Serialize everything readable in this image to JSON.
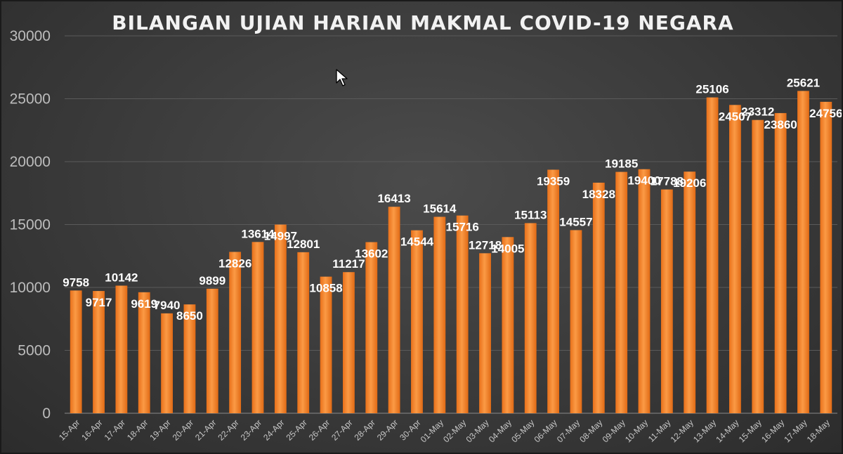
{
  "chart_data": {
    "type": "bar",
    "title": "BILANGAN UJIAN HARIAN MAKMAL COVID-19 NEGARA",
    "xlabel": "",
    "ylabel": "",
    "ylim": [
      0,
      30000
    ],
    "yticks": [
      0,
      5000,
      10000,
      15000,
      20000,
      25000,
      30000
    ],
    "grid": true,
    "legend": "none",
    "bar_color": "#f28a2e",
    "categories": [
      "15-Apr",
      "16-Apr",
      "17-Apr",
      "18-Apr",
      "19-Apr",
      "20-Apr",
      "21-Apr",
      "22-Apr",
      "23-Apr",
      "24-Apr",
      "25-Apr",
      "26-Apr",
      "27-Apr",
      "28-Apr",
      "29-Apr",
      "30-Apr",
      "01-May",
      "02-May",
      "03-May",
      "04-May",
      "05-May",
      "06-May",
      "07-May",
      "08-May",
      "09-May",
      "10-May",
      "11-May",
      "12-May",
      "13-May",
      "14-May",
      "15-May",
      "16-May",
      "17-May",
      "18-May"
    ],
    "values": [
      9758,
      9717,
      10142,
      9619,
      7940,
      8650,
      9899,
      12826,
      13614,
      14997,
      12801,
      10858,
      11217,
      13602,
      16413,
      14544,
      15614,
      15716,
      12718,
      14005,
      15113,
      19359,
      14557,
      18328,
      19185,
      19400,
      17788,
      19206,
      25106,
      24507,
      23312,
      23860,
      25621,
      24756
    ],
    "data_labels": [
      "9758",
      "9717",
      "10142",
      "9619",
      "7940",
      "8650",
      "9899",
      "12826",
      "13614",
      "14997",
      "12801",
      "10858",
      "11217",
      "13602",
      "16413",
      "14544",
      "15614",
      "15716",
      "12718",
      "14005",
      "15113",
      "19359",
      "14557",
      "18328",
      "19185",
      "19400",
      "17788",
      "19206",
      "25106",
      "24507",
      "23312",
      "23860",
      "25621",
      "24756"
    ]
  },
  "ui": {
    "cursor_icon": "mouse-pointer-icon"
  }
}
